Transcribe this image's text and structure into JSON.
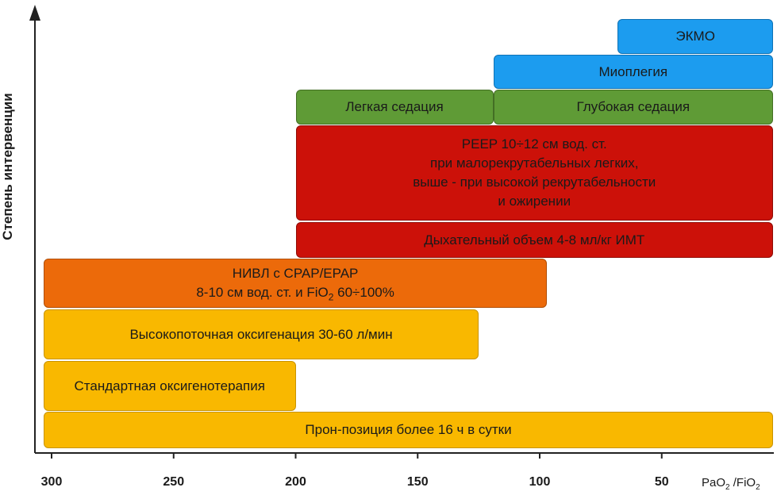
{
  "chart_data": {
    "type": "range-bar",
    "ylabel": "Степень интервенции",
    "xlabel_main": "PaO",
    "xlabel_sub1": "2",
    "xlabel_mid": " /FiO",
    "xlabel_sub2": "2",
    "xlim": [
      305,
      0
    ],
    "x_ticks": [
      "300",
      "250",
      "200",
      "150",
      "100",
      "50"
    ],
    "tick_values": [
      300,
      250,
      200,
      150,
      100,
      50
    ],
    "bars": [
      {
        "id": "prone",
        "label": "Прон-позиция более 16 ч в сутки",
        "from": 300,
        "to": 0,
        "level": 1,
        "color": "#f9b800"
      },
      {
        "id": "standard-oxygen",
        "label": "Стандартная оксигенотерапия",
        "from": 300,
        "to": 200,
        "level": 2,
        "color": "#f9b800"
      },
      {
        "id": "high-flow",
        "label": "Высокопоточная оксигенация 30-60 л/мин",
        "from": 300,
        "to": 125,
        "level": 3,
        "color": "#f9b800"
      },
      {
        "id": "niv",
        "label": "НИВЛ с CPAP/EPAP",
        "label2": "8-10 см вод. ст. и FiO",
        "label2_sub": "2",
        "label2_tail": " 60÷100%",
        "from": 300,
        "to": 97,
        "level": 4,
        "color": "#ec6a0a"
      },
      {
        "id": "tidal-volume",
        "label": "Дыхательный объем 4-8 мл/кг ИМТ",
        "from": 200,
        "to": 0,
        "level": 5,
        "color": "#cc1109"
      },
      {
        "id": "peep",
        "label": "PEEP 10÷12 см вод. ст.\nпри малорекрутабельных легких,\nвыше - при высокой рекрутабельности\nи ожирении",
        "from": 200,
        "to": 0,
        "level": 6,
        "color": "#cc1109"
      },
      {
        "id": "light-sedation",
        "label": "Легкая седация",
        "from": 200,
        "to": 119,
        "level": 7,
        "color": "#5f9b36"
      },
      {
        "id": "deep-sedation",
        "label": "Глубокая седация",
        "from": 119,
        "to": 0,
        "level": 7,
        "color": "#5f9b36"
      },
      {
        "id": "myoplegia",
        "label": "Миоплегия",
        "from": 119,
        "to": 0,
        "level": 8,
        "color": "#1c9cef"
      },
      {
        "id": "ecmo",
        "label": "ЭКМО",
        "from": 68,
        "to": 0,
        "level": 9,
        "color": "#1c9cef"
      }
    ]
  }
}
